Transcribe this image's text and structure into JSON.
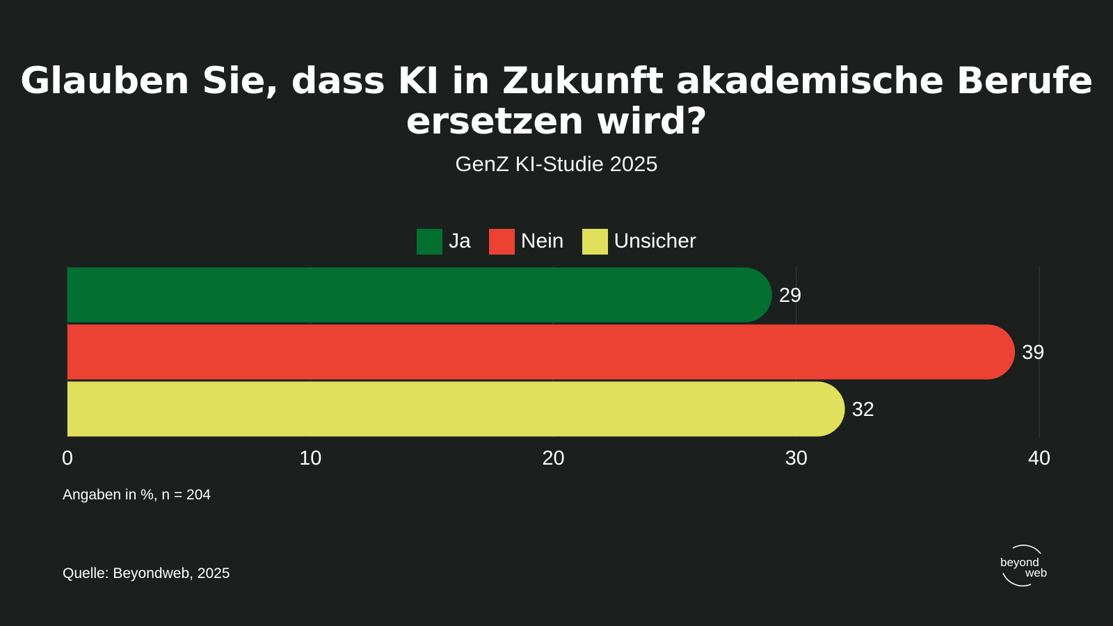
{
  "chart_data": {
    "type": "bar",
    "orientation": "horizontal",
    "title": "Glauben Sie, dass KI in Zukunft akademische Berufe ersetzen wird?",
    "subtitle": "GenZ KI-Studie 2025",
    "categories": [
      "Ja",
      "Nein",
      "Unsicher"
    ],
    "values": [
      29,
      39,
      32
    ],
    "colors": [
      "#037032",
      "#ec4234",
      "#e0e05d"
    ],
    "xlim": [
      0,
      40
    ],
    "xticks": [
      "0",
      "10",
      "20",
      "30",
      "40"
    ],
    "grid": true,
    "legend_position": "top-center",
    "note": "Angaben in %, n = 204",
    "source": "Quelle: Beyondweb, 2025"
  },
  "logo": {
    "line1": "beyond",
    "line2": "web"
  },
  "colors": {
    "background": "#1b1f1e",
    "grid": "#3a3f3e",
    "text": "#ffffff"
  }
}
